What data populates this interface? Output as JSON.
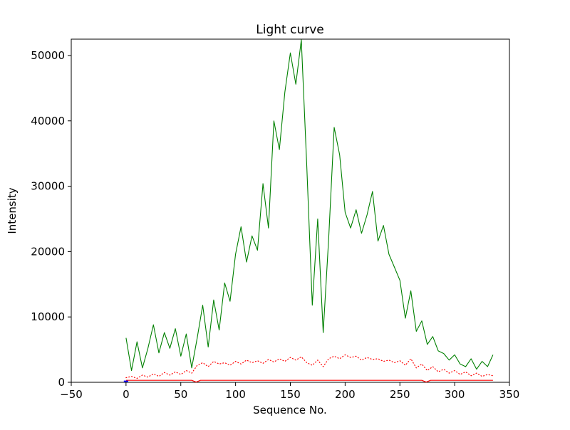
{
  "figure": {
    "title": "Light curve",
    "xlabel": "Sequence No.",
    "ylabel": "Intensity"
  },
  "chart_data": {
    "type": "line",
    "title": "Light curve",
    "xlabel": "Sequence No.",
    "ylabel": "Intensity",
    "xlim": [
      -50,
      350
    ],
    "ylim": [
      0,
      52500
    ],
    "grid": false,
    "legend_position": "none",
    "xticks": {
      "values": [
        -50,
        0,
        50,
        100,
        150,
        200,
        250,
        300,
        350
      ],
      "labels": [
        "−50",
        "0",
        "50",
        "100",
        "150",
        "200",
        "250",
        "300",
        "350"
      ]
    },
    "yticks": {
      "values": [
        0,
        10000,
        20000,
        30000,
        40000,
        50000
      ],
      "labels": [
        "0",
        "10000",
        "20000",
        "30000",
        "40000",
        "50000"
      ]
    },
    "series": [
      {
        "name": "light-curve-green",
        "color": "#008000",
        "style": "solid",
        "width": 1.1,
        "x": [
          0,
          5,
          10,
          15,
          20,
          25,
          30,
          35,
          40,
          45,
          50,
          55,
          60,
          65,
          70,
          75,
          80,
          85,
          90,
          95,
          100,
          105,
          110,
          115,
          120,
          125,
          130,
          135,
          140,
          145,
          150,
          155,
          160,
          165,
          170,
          175,
          180,
          185,
          190,
          195,
          200,
          205,
          210,
          215,
          220,
          225,
          230,
          235,
          240,
          245,
          250,
          255,
          260,
          265,
          270,
          275,
          280,
          285,
          290,
          295,
          300,
          305,
          310,
          315,
          320,
          325,
          330,
          335
        ],
        "values": [
          6800,
          1800,
          6200,
          2200,
          5200,
          8800,
          4500,
          7600,
          5200,
          8200,
          4000,
          7400,
          2200,
          6800,
          11800,
          5400,
          12600,
          8000,
          15200,
          12400,
          19600,
          23800,
          18400,
          22400,
          20200,
          30400,
          23600,
          40000,
          35600,
          44400,
          50400,
          45600,
          52400,
          33000,
          11800,
          25000,
          7600,
          22000,
          39000,
          34800,
          26000,
          23600,
          26400,
          22800,
          25600,
          29200,
          21600,
          24000,
          19600,
          17600,
          15600,
          9800,
          14000,
          7800,
          9400,
          5800,
          7000,
          4800,
          4400,
          3400,
          4200,
          2800,
          2400,
          3600,
          2000,
          3200,
          2400,
          4200
        ]
      },
      {
        "name": "background-red-dotted",
        "color": "#ff0000",
        "style": "dotted",
        "width": 1.2,
        "x": [
          0,
          5,
          10,
          15,
          20,
          25,
          30,
          35,
          40,
          45,
          50,
          55,
          60,
          65,
          70,
          75,
          80,
          85,
          90,
          95,
          100,
          105,
          110,
          115,
          120,
          125,
          130,
          135,
          140,
          145,
          150,
          155,
          160,
          165,
          170,
          175,
          180,
          185,
          190,
          195,
          200,
          205,
          210,
          215,
          220,
          225,
          230,
          235,
          240,
          245,
          250,
          255,
          260,
          265,
          270,
          275,
          280,
          285,
          290,
          295,
          300,
          305,
          310,
          315,
          320,
          325,
          330,
          335
        ],
        "values": [
          700,
          900,
          600,
          1100,
          800,
          1300,
          900,
          1500,
          1100,
          1600,
          1200,
          1800,
          1400,
          2600,
          3000,
          2400,
          3200,
          2800,
          3000,
          2600,
          3200,
          2800,
          3400,
          3000,
          3300,
          2900,
          3500,
          3100,
          3600,
          3200,
          3800,
          3400,
          3900,
          3000,
          2600,
          3400,
          2400,
          3600,
          4000,
          3600,
          4200,
          3800,
          4000,
          3400,
          3800,
          3500,
          3600,
          3200,
          3400,
          3000,
          3300,
          2600,
          3600,
          2200,
          2800,
          1800,
          2400,
          1600,
          2000,
          1400,
          1800,
          1200,
          1600,
          1000,
          1400,
          900,
          1200,
          1000
        ]
      },
      {
        "name": "baseline-red-solid",
        "color": "#ff0000",
        "style": "solid",
        "width": 1.2,
        "x": [
          0,
          60,
          64,
          68,
          270,
          274,
          278,
          335
        ],
        "values": [
          300,
          300,
          30,
          300,
          300,
          30,
          300,
          300
        ]
      },
      {
        "name": "marker-blue",
        "color": "#0000ff",
        "style": "solid",
        "width": 2,
        "x": [
          -2,
          2
        ],
        "values": [
          150,
          150
        ]
      }
    ]
  }
}
